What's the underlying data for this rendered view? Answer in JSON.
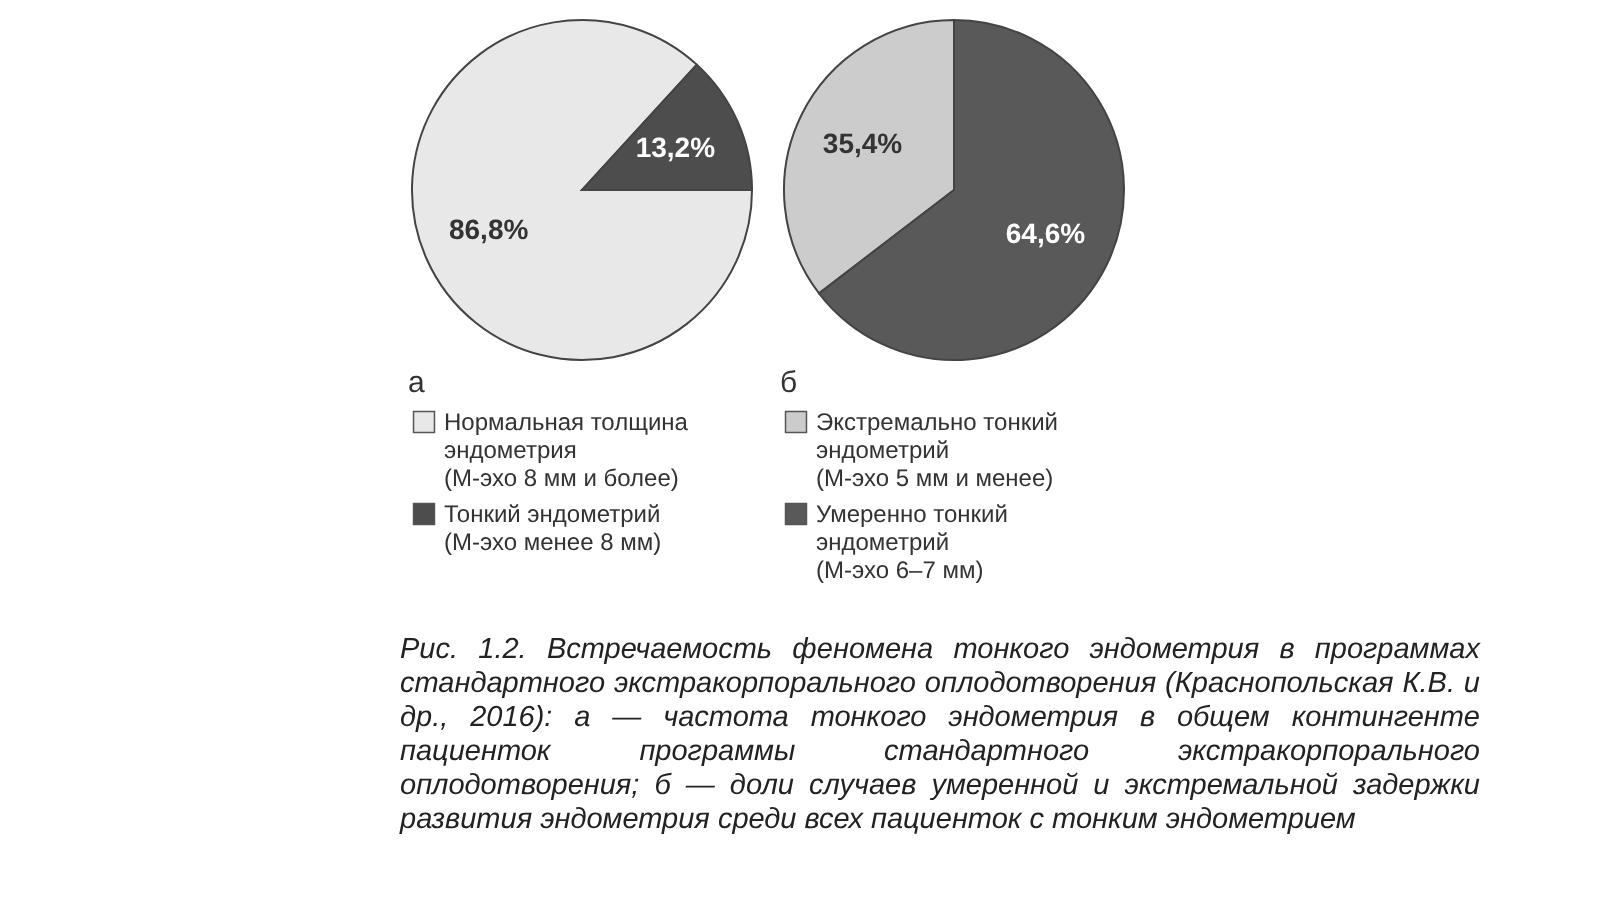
{
  "chart_data": [
    {
      "type": "pie",
      "title": "а",
      "categories": [
        "Нормальная толщина эндометрия (М-эхо 8 мм и более)",
        "Тонкий эндометрий (М-эхо менее 8 мм)"
      ],
      "values": [
        86.8,
        13.2
      ],
      "colors": [
        "#e8e8e8",
        "#4d4d4d"
      ],
      "value_labels": [
        "86,8%",
        "13,2%"
      ],
      "legend": "bottom",
      "annotations": [
        "Рис. 1.2. Встречаемость феномена тонкого эндометрия в программах стандартного экстракорпорального оплодотворения (Краснопольская К.В. и др., 2016): а — частота тонкого эндометрия в общем контингенте пациенток программы стандартного экстракорпорального оплодотворения; б — доли случаев умеренной и экстремальной задержки развития эндометрия среди всех пациенток с тонким эндометрием"
      ]
    },
    {
      "type": "pie",
      "title": "б",
      "categories": [
        "Экстремально тонкий эндометрий (М-эхо 5 мм и менее)",
        "Умеренно тонкий эндометрий (М-эхо 6–7 мм)"
      ],
      "values": [
        35.4,
        64.6
      ],
      "colors": [
        "#cccccc",
        "#595959"
      ],
      "value_labels": [
        "35,4%",
        "64,6%"
      ],
      "legend": "bottom"
    }
  ]
}
